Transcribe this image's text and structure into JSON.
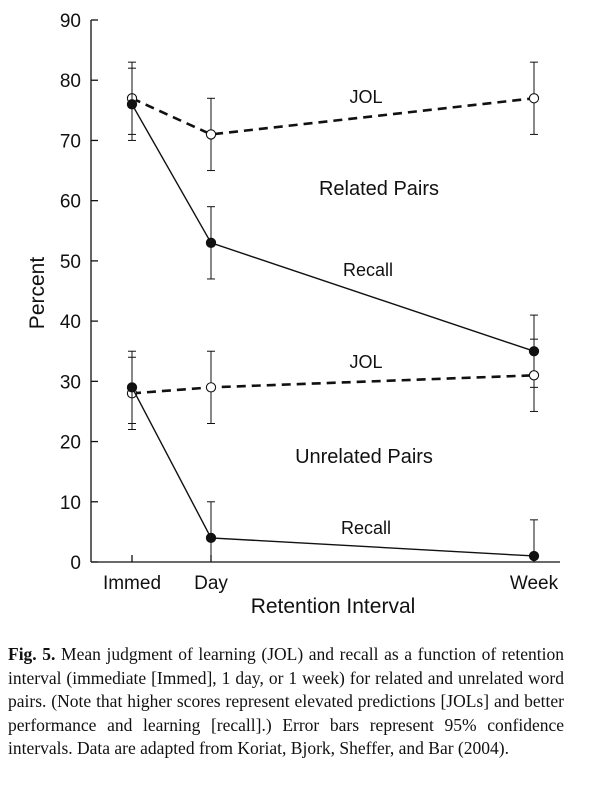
{
  "chart_data": {
    "type": "line",
    "categories": [
      "Immed",
      "Day",
      "Week"
    ],
    "x_positions_days": [
      0,
      1,
      7
    ],
    "xlabel": "Retention Interval",
    "ylabel": "Percent",
    "ylim": [
      0,
      90
    ],
    "yticks": [
      0,
      10,
      20,
      30,
      40,
      50,
      60,
      70,
      80,
      90
    ],
    "error_bars": "95% confidence intervals",
    "series": [
      {
        "group": "Related Pairs",
        "name": "JOL",
        "style": "dashed",
        "marker": "open-circle",
        "values": [
          77,
          71,
          77
        ],
        "err_low": [
          71,
          65,
          71
        ],
        "err_high": [
          83,
          77,
          83
        ]
      },
      {
        "group": "Related Pairs",
        "name": "Recall",
        "style": "solid",
        "marker": "filled-circle",
        "values": [
          76,
          53,
          35
        ],
        "err_low": [
          70,
          47,
          29
        ],
        "err_high": [
          82,
          59,
          41
        ]
      },
      {
        "group": "Unrelated Pairs",
        "name": "JOL",
        "style": "dashed",
        "marker": "open-circle",
        "values": [
          28,
          29,
          31
        ],
        "err_low": [
          22,
          23,
          25
        ],
        "err_high": [
          34,
          35,
          37
        ]
      },
      {
        "group": "Unrelated Pairs",
        "name": "Recall",
        "style": "solid",
        "marker": "filled-circle",
        "values": [
          29,
          4,
          1
        ],
        "err_low": [
          23,
          -2,
          -5
        ],
        "err_high": [
          35,
          10,
          7
        ]
      }
    ],
    "annotations": {
      "related_group": "Related Pairs",
      "unrelated_group": "Unrelated Pairs",
      "related_jol": "JOL",
      "related_recall": "Recall",
      "unrelated_jol": "JOL",
      "unrelated_recall": "Recall"
    }
  },
  "caption": {
    "label": "Fig. 5.",
    "text": "Mean judgment of learning (JOL) and recall as a function of retention interval (immediate [Immed], 1 day, or 1 week) for related and unrelated word pairs. (Note that higher scores represent elevated predictions [JOLs] and better performance and learning [recall].) Error bars represent 95% confidence intervals. Data are adapted from Koriat, Bjork, Sheffer, and Bar (2004)."
  }
}
